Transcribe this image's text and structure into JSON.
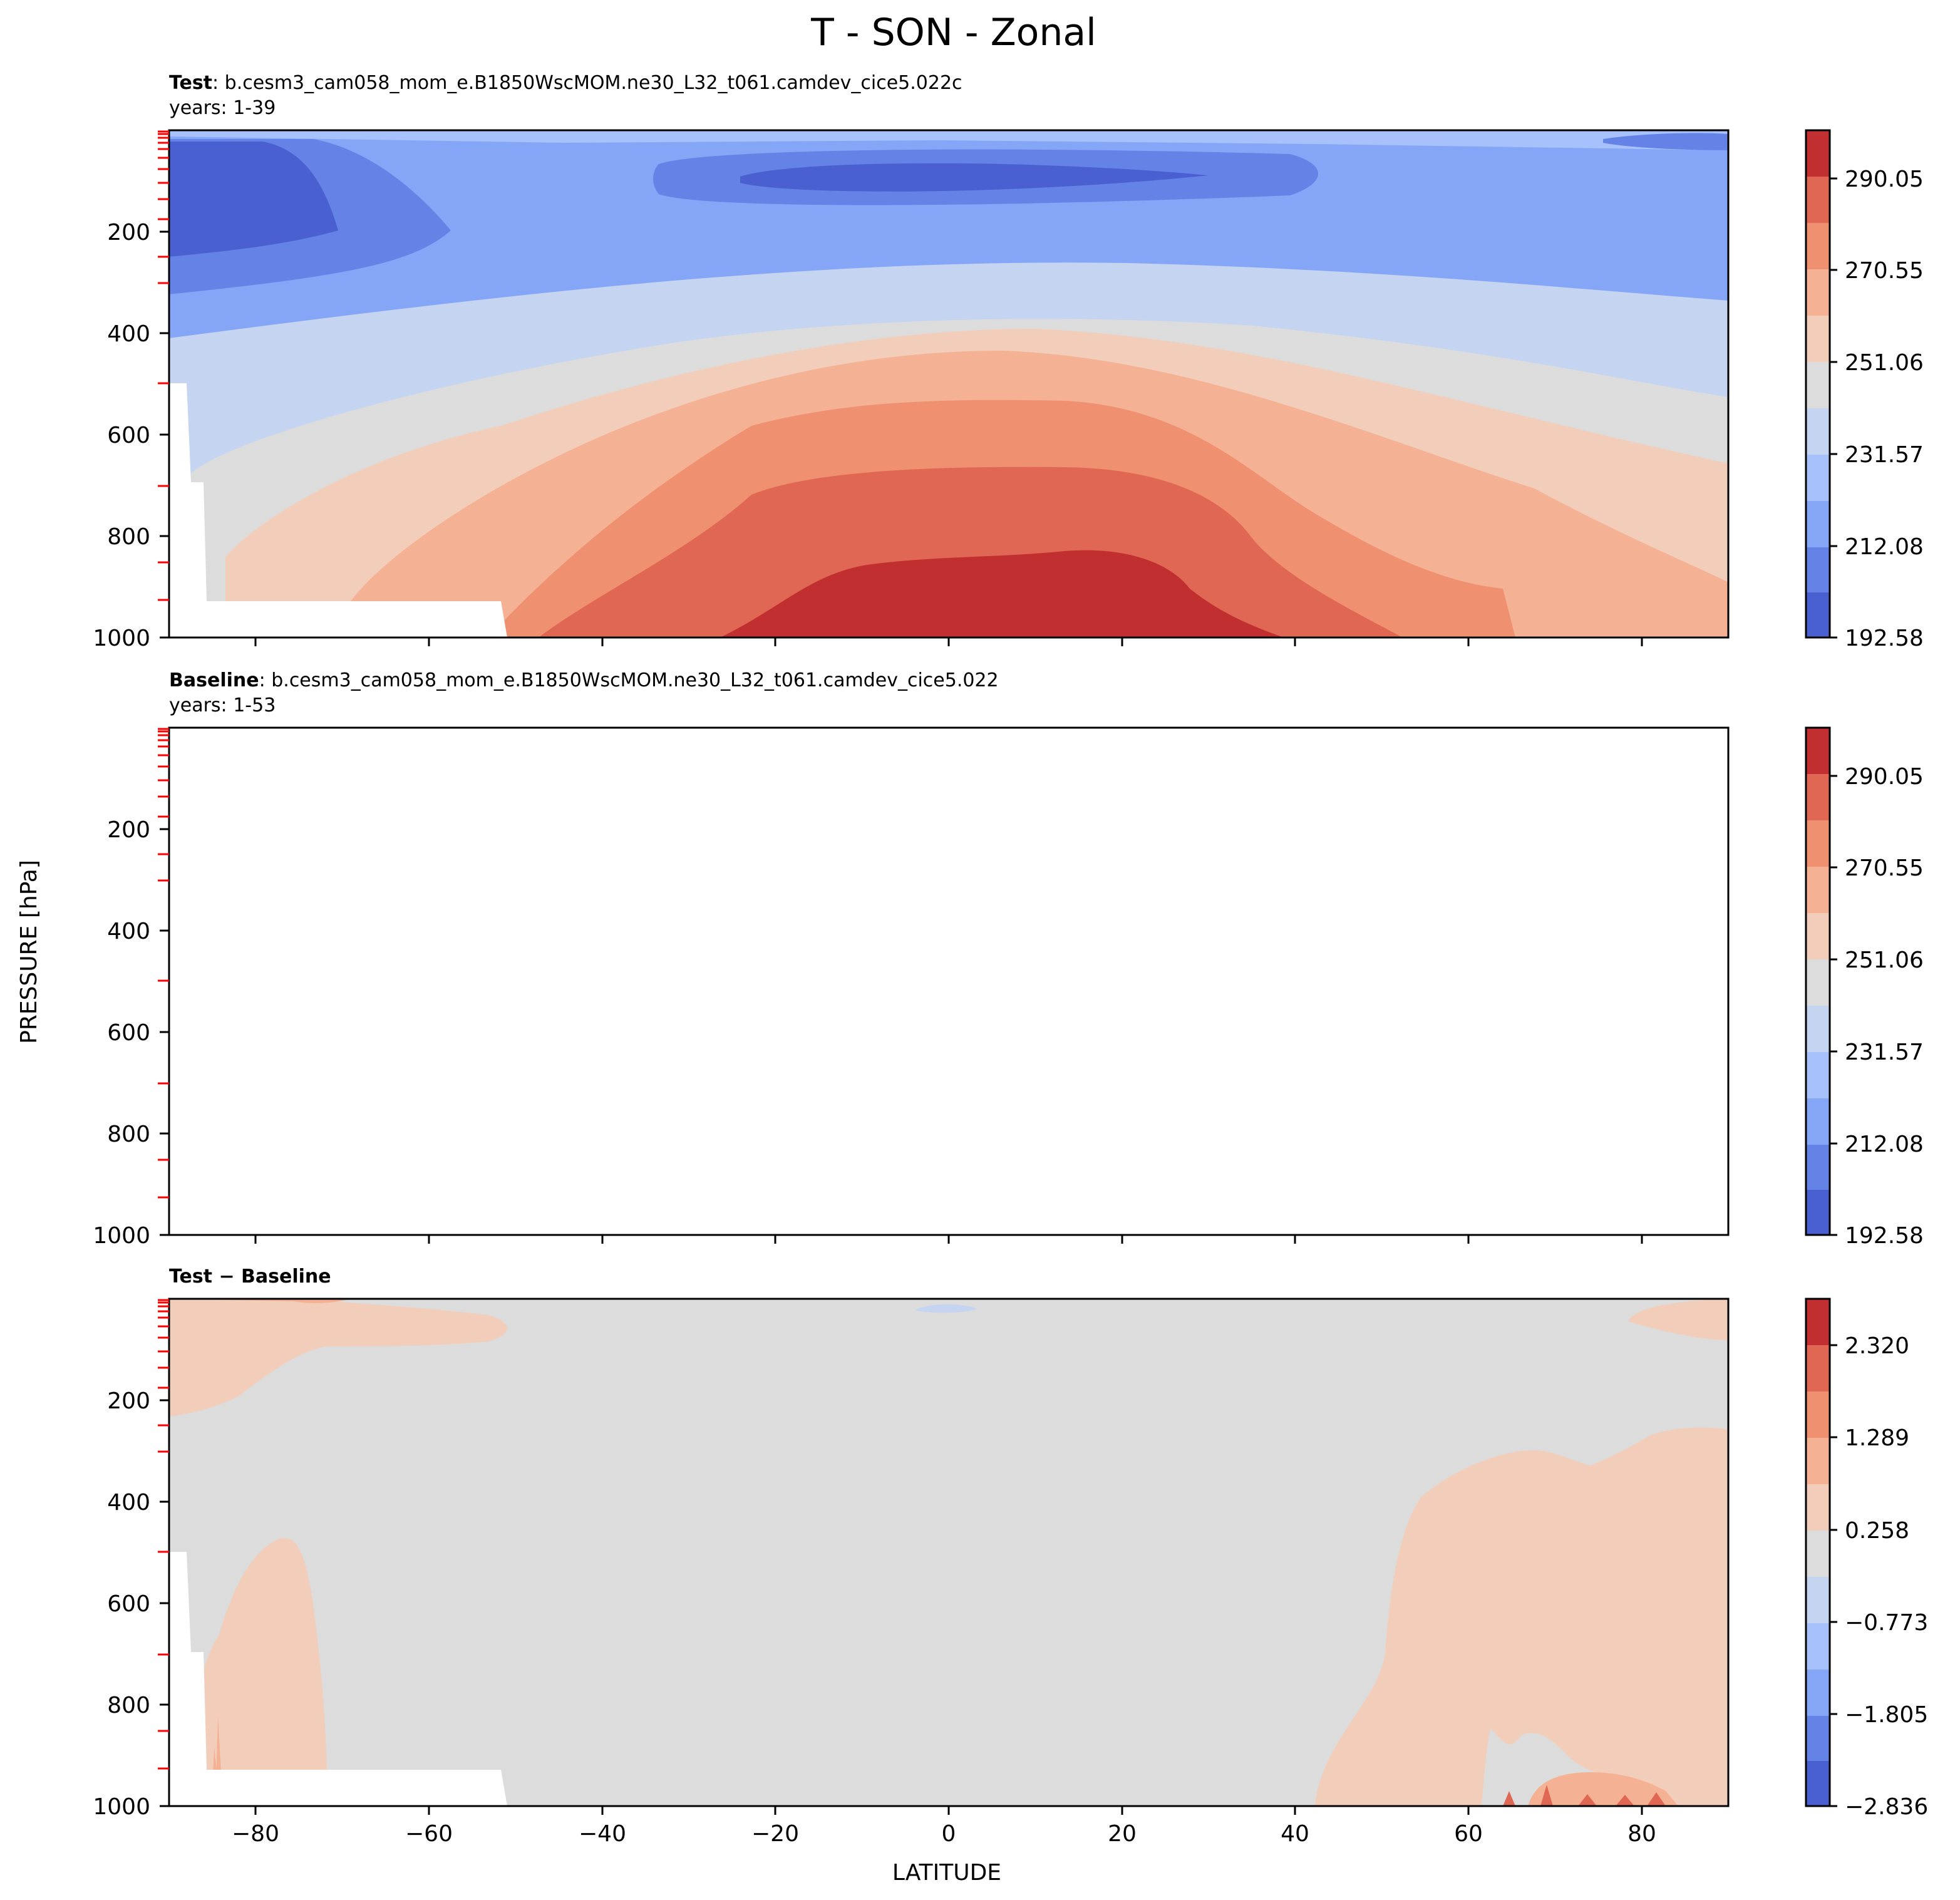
{
  "figure": {
    "title": "T - SON - Zonal",
    "ylabel": "PRESSURE [hPa]",
    "xlabel": "LATITUDE"
  },
  "chart_data": [
    {
      "type": "heatmap",
      "panel": "test",
      "label_bold": "Test",
      "label_rest": ":  b.cesm3_cam058_mom_e.B1850WscMOM.ne30_L32_t061.camdev_cice5.022c",
      "years": "years: 1-39",
      "x_range": [
        -90,
        90
      ],
      "y_range": [
        1000,
        0
      ],
      "y_inverted": true,
      "yticks": [
        "200",
        "400",
        "600",
        "800",
        "1000"
      ],
      "colorbar_ticks": [
        "290.05",
        "270.55",
        "251.06",
        "231.57",
        "212.08",
        "192.58"
      ],
      "colorbar_range": [
        192.58,
        299.8
      ],
      "colorbar_levels": 11,
      "field": "zonal mean temperature: coldest (~195) near 100-150 hPa over tropics and 100-250 hPa over 90S-70S; warmest (~295) near surface over 20S-30N"
    },
    {
      "type": "heatmap",
      "panel": "baseline",
      "label_bold": "Baseline",
      "label_rest": ":  b.cesm3_cam058_mom_e.B1850WscMOM.ne30_L32_t061.camdev_cice5.022",
      "years": "years: 1-53",
      "x_range": [
        -90,
        90
      ],
      "y_range": [
        1000,
        0
      ],
      "y_inverted": true,
      "yticks": [
        "200",
        "400",
        "600",
        "800",
        "1000"
      ],
      "colorbar_ticks": [
        "290.05",
        "270.55",
        "251.06",
        "231.57",
        "212.08",
        "192.58"
      ],
      "colorbar_range": [
        192.58,
        299.8
      ],
      "colorbar_levels": 11
    },
    {
      "type": "heatmap",
      "panel": "difference",
      "label_bold": "Test − Baseline",
      "x_range": [
        -90,
        90
      ],
      "y_range": [
        1000,
        0
      ],
      "y_inverted": true,
      "xticks": [
        "−80",
        "−60",
        "−40",
        "−20",
        "0",
        "20",
        "40",
        "60",
        "80"
      ],
      "yticks": [
        "200",
        "400",
        "600",
        "800",
        "1000"
      ],
      "colorbar_ticks": [
        "2.320",
        "1.289",
        "0.258",
        "−0.773",
        "−1.805",
        "−2.836"
      ],
      "colorbar_range": [
        -2.836,
        2.836
      ],
      "colorbar_levels": 11,
      "field": "mostly near zero (-0.26 to 0.26); small positive anomalies (0.26-0.77) at 90S-60S upper levels, 80S-70S lower levels and 50N-90N below 300 hPa"
    }
  ],
  "colors": {
    "diverging": [
      "#4a5fd0",
      "#6583e6",
      "#85a5f7",
      "#a6c1fb",
      "#c5d4f1",
      "#dcdcdc",
      "#f2cdb9",
      "#f4b193",
      "#ef9071",
      "#e06753",
      "#c22f30"
    ],
    "frame": "#000000",
    "tick_red": "#ff0000"
  }
}
